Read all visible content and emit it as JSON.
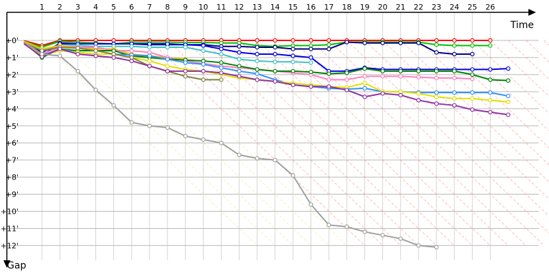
{
  "chart_data": {
    "type": "line",
    "xlabel": "Time",
    "ylabel": "Gap",
    "x_ticks": [
      "1",
      "2",
      "3",
      "4",
      "5",
      "6",
      "7",
      "8",
      "9",
      "10",
      "11",
      "12",
      "13",
      "14",
      "15",
      "16",
      "17",
      "18",
      "19",
      "20",
      "21",
      "22",
      "23",
      "24",
      "25",
      "26"
    ],
    "y_ticks": [
      "+0'",
      "+1'",
      "+2'",
      "+3'",
      "+4'",
      "+5'",
      "+6'",
      "+7'",
      "+8'",
      "+9'",
      "+10'",
      "+11'",
      "+12'"
    ],
    "xlim": [
      0,
      27.3
    ],
    "ylim": [
      0,
      12
    ],
    "grid": true,
    "series": [
      {
        "color": "#ff0000",
        "values": [
          0.02,
          0.3,
          0.0,
          0.0,
          0.0,
          0.0,
          0.0,
          0.0,
          0.0,
          0.0,
          0.0,
          0.0,
          0.0,
          0.0,
          0.0,
          0.0,
          0.0,
          0.0,
          0.0,
          0.0,
          0.0,
          0.0,
          0.0,
          0.0,
          0.0,
          0.0,
          0.0
        ]
      },
      {
        "color": "#00c000",
        "values": [
          0.05,
          0.4,
          0.05,
          0.1,
          0.15,
          0.2,
          0.1,
          0.1,
          0.1,
          0.12,
          0.12,
          0.15,
          0.15,
          0.3,
          0.35,
          0.3,
          0.3,
          0.25,
          0.1,
          0.1,
          0.1,
          0.1,
          0.1,
          0.25,
          0.3,
          0.3,
          0.3
        ]
      },
      {
        "color": "#000080",
        "values": [
          0.08,
          0.9,
          0.15,
          0.2,
          0.2,
          0.2,
          0.2,
          0.25,
          0.25,
          0.25,
          0.25,
          0.35,
          0.35,
          0.4,
          0.4,
          0.5,
          0.5,
          0.5,
          0.1,
          0.15,
          0.15,
          0.15,
          0.15,
          0.7,
          0.8,
          0.8
        ]
      },
      {
        "color": "#0000dd",
        "values": [
          0.1,
          0.7,
          0.2,
          0.2,
          0.2,
          0.2,
          0.2,
          0.2,
          0.2,
          0.25,
          0.3,
          0.5,
          0.7,
          0.8,
          0.8,
          0.9,
          1.0,
          1.8,
          1.8,
          1.6,
          1.7,
          1.7,
          1.7,
          1.7,
          1.7,
          1.7,
          1.7,
          1.65
        ]
      },
      {
        "color": "#40c0c0",
        "values": [
          0.1,
          0.6,
          0.3,
          0.3,
          0.35,
          0.35,
          0.35,
          0.4,
          0.4,
          0.4,
          0.6,
          0.8,
          1.1,
          1.2,
          1.25,
          1.25,
          1.3
        ]
      },
      {
        "color": "#ffc000",
        "values": [
          0.05,
          0.5,
          0.3,
          0.4,
          0.5,
          0.5,
          0.8,
          0.9,
          1.0,
          1.1
        ]
      },
      {
        "color": "#ff80c0",
        "values": [
          0.12,
          0.8,
          0.4,
          0.4,
          0.4,
          0.6,
          0.6,
          0.7,
          1.0,
          1.2,
          1.35,
          1.5,
          1.6,
          1.7,
          1.8,
          1.9,
          2.0,
          2.3,
          2.3,
          2.1,
          2.1,
          2.1,
          2.15,
          2.2,
          2.2,
          2.25
        ]
      },
      {
        "color": "#008000",
        "values": [
          0.15,
          1.0,
          0.5,
          0.6,
          0.6,
          0.6,
          0.9,
          1.0,
          1.1,
          1.15,
          1.2,
          1.3,
          1.5,
          1.7,
          1.8,
          1.8,
          1.85,
          1.95,
          1.9,
          1.65,
          1.8,
          1.8,
          1.8,
          1.8,
          1.8,
          2.0,
          2.3,
          2.35
        ]
      },
      {
        "color": "#3090ff",
        "values": [
          0.15,
          0.9,
          0.5,
          0.7,
          0.8,
          0.8,
          0.85,
          0.9,
          1.1,
          1.3,
          1.4,
          1.6,
          1.8,
          1.95,
          2.3,
          2.6,
          2.7,
          2.8,
          2.85,
          2.8,
          3.0,
          3.0,
          3.05,
          3.05,
          3.05,
          3.05,
          3.05,
          3.25
        ]
      },
      {
        "color": "#e0e000",
        "values": [
          0.15,
          0.9,
          0.6,
          0.7,
          0.8,
          0.8,
          1.0,
          1.2,
          1.5,
          1.7,
          1.8,
          2.0,
          2.2,
          2.3,
          2.4,
          2.5,
          2.6,
          2.7,
          2.75,
          2.5,
          3.0,
          3.0,
          3.1,
          3.3,
          3.4,
          3.4,
          3.5,
          3.6
        ]
      },
      {
        "color": "#808040",
        "values": [
          0.15,
          0.6,
          0.4,
          0.45,
          0.6,
          0.8,
          1.0,
          1.5,
          1.8,
          2.1,
          2.3,
          2.3
        ]
      },
      {
        "color": "#9030a0",
        "values": [
          0.2,
          0.95,
          0.5,
          0.8,
          0.9,
          1.0,
          1.2,
          1.5,
          1.8,
          1.8,
          1.8,
          1.9,
          2.1,
          2.3,
          2.4,
          2.6,
          2.7,
          2.7,
          2.9,
          3.3,
          3.1,
          3.2,
          3.5,
          3.7,
          3.8,
          4.05,
          4.2,
          4.35
        ]
      },
      {
        "color": "#a0a0a0",
        "values": [
          0.1,
          0.8,
          0.9,
          1.8,
          2.9,
          3.8,
          4.8,
          5.0,
          5.1,
          5.6,
          5.8,
          6.0,
          6.7,
          6.9,
          7.0,
          7.9,
          9.6,
          10.8,
          10.9,
          11.2,
          11.4,
          11.6,
          12.0,
          12.1
        ]
      }
    ]
  }
}
